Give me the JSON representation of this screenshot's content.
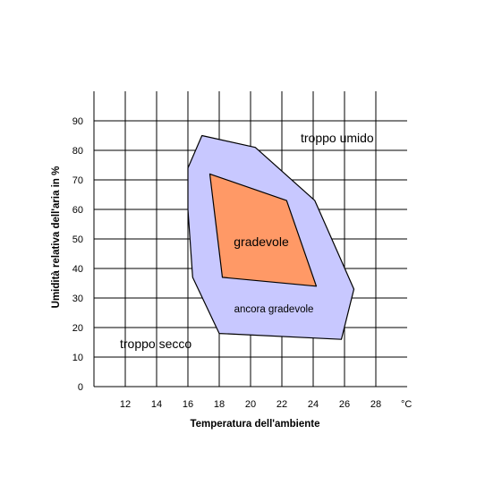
{
  "chart_data": {
    "type": "area",
    "title": "",
    "xlabel": "Temperatura dell'ambiente",
    "ylabel": "Umidità relativa dell'aria in %",
    "x_unit": "°C",
    "xlim": [
      10,
      30
    ],
    "ylim": [
      0,
      100
    ],
    "x_ticks": [
      12,
      14,
      16,
      18,
      20,
      22,
      24,
      26,
      28
    ],
    "y_ticks": [
      0,
      10,
      20,
      30,
      40,
      50,
      60,
      70,
      80,
      90
    ],
    "grid": true,
    "legend": "none",
    "regions": [
      {
        "label": "ancora gradevole",
        "color": "#c8c8ff",
        "points": [
          [
            16.0,
            74
          ],
          [
            16.9,
            85
          ],
          [
            20.3,
            81
          ],
          [
            24.1,
            63
          ],
          [
            26.6,
            33
          ],
          [
            25.8,
            16
          ],
          [
            18.0,
            18
          ],
          [
            16.3,
            37
          ],
          [
            16.0,
            60
          ]
        ]
      },
      {
        "label": "gradevole",
        "color": "#ff9966",
        "points": [
          [
            17.4,
            72
          ],
          [
            22.3,
            63
          ],
          [
            24.2,
            34
          ],
          [
            18.2,
            37
          ]
        ]
      }
    ],
    "annotations": [
      {
        "text": "troppo umido",
        "x": 23.3,
        "y": 82
      },
      {
        "text": "troppo secco",
        "x": 11.7,
        "y": 13
      }
    ]
  },
  "colors": {
    "outer_region": "#c8c8ff",
    "inner_region": "#ff9966",
    "grid": "#000000"
  }
}
